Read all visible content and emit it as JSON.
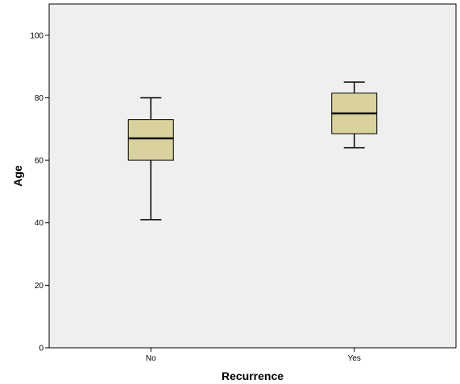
{
  "chart_data": {
    "type": "boxplot",
    "xlabel": "Recurrence",
    "ylabel": "Age",
    "categories": [
      "No",
      "Yes"
    ],
    "ylim": [
      0,
      110
    ],
    "yticks": [
      0,
      20,
      40,
      60,
      80,
      100
    ],
    "grid": false,
    "boxes": [
      {
        "category": "No",
        "min": 41,
        "q1": 60,
        "median": 67,
        "q3": 73,
        "max": 80
      },
      {
        "category": "Yes",
        "min": 64,
        "q1": 68.5,
        "median": 75,
        "q3": 81.5,
        "max": 85
      }
    ],
    "colors": {
      "plot_background": "#efefef",
      "box_fill": "#d9d29e",
      "stroke": "#000000"
    }
  }
}
